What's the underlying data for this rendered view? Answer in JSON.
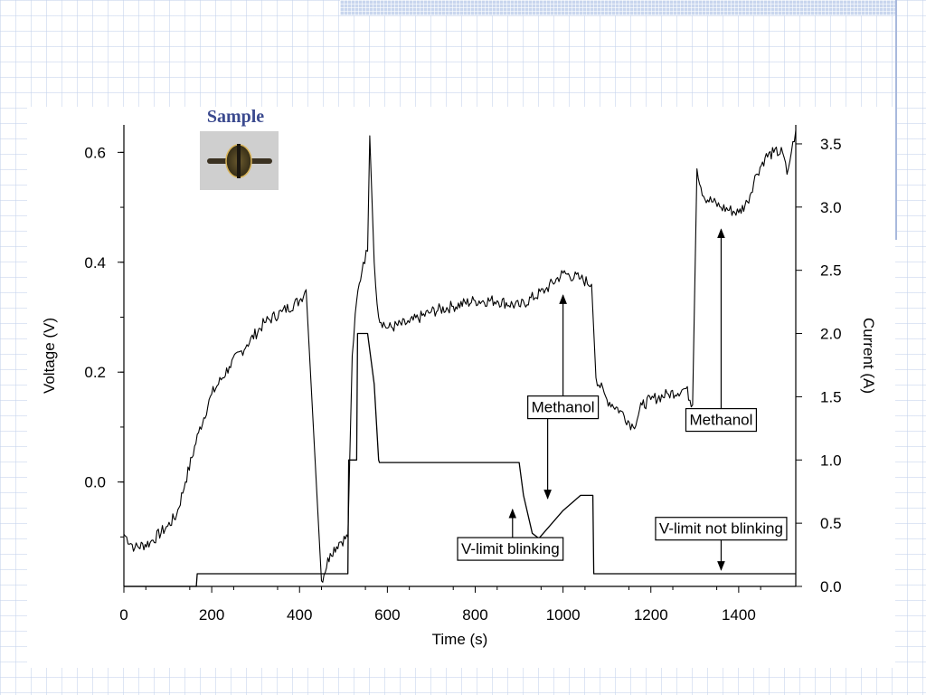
{
  "sample": {
    "label": "Sample",
    "icon": "sample-thumbnail"
  },
  "chart_data": {
    "type": "line",
    "xlabel": "Time (s)",
    "ylabel_left": "Voltage (V)",
    "ylabel_right": "Current (A)",
    "xlim": [
      0,
      1530
    ],
    "ylim_left": [
      -0.19,
      0.65
    ],
    "ylim_right": [
      0,
      3.65
    ],
    "x_ticks": [
      0,
      200,
      400,
      600,
      800,
      1000,
      1200,
      1400
    ],
    "x_tick_labels": [
      "0",
      "200",
      "400",
      "600",
      "800",
      "1000",
      "1200",
      "1400"
    ],
    "y_left_ticks": [
      0.0,
      0.2,
      0.4,
      0.6
    ],
    "y_left_tick_labels": [
      "0.0",
      "0.2",
      "0.4",
      "0.6"
    ],
    "y_right_ticks": [
      0.0,
      0.5,
      1.0,
      1.5,
      2.0,
      2.5,
      3.0,
      3.5
    ],
    "y_right_tick_labels": [
      "0.0",
      "0.5",
      "1.0",
      "1.5",
      "2.0",
      "2.5",
      "3.0",
      "3.5"
    ],
    "grid": false,
    "series": [
      {
        "axis": "left",
        "x": [
          0,
          25,
          60,
          100,
          120,
          140,
          170,
          200,
          240,
          280,
          320,
          360,
          400,
          415,
          450,
          470,
          490,
          510,
          520,
          530,
          545,
          555,
          560,
          570,
          580,
          600,
          650,
          700,
          750,
          800,
          850,
          900,
          960,
          1000,
          1040,
          1065,
          1075,
          1100,
          1130,
          1160,
          1180,
          1200,
          1240,
          1280,
          1295,
          1305,
          1320,
          1360,
          1400,
          1420,
          1440,
          1460,
          1480,
          1500,
          1510,
          1520,
          1530
        ],
        "y": [
          -0.095,
          -0.12,
          -0.11,
          -0.08,
          -0.06,
          0.0,
          0.09,
          0.16,
          0.21,
          0.25,
          0.29,
          0.31,
          0.33,
          0.35,
          -0.18,
          -0.13,
          -0.11,
          -0.1,
          0.23,
          0.33,
          0.4,
          0.42,
          0.63,
          0.4,
          0.3,
          0.28,
          0.29,
          0.31,
          0.32,
          0.33,
          0.33,
          0.32,
          0.35,
          0.38,
          0.37,
          0.36,
          0.19,
          0.15,
          0.13,
          0.1,
          0.14,
          0.15,
          0.16,
          0.17,
          0.14,
          0.57,
          0.52,
          0.5,
          0.49,
          0.51,
          0.56,
          0.59,
          0.6,
          0.6,
          0.56,
          0.6,
          0.64
        ]
      },
      {
        "axis": "right",
        "x": [
          0,
          165,
          167,
          510,
          512,
          530,
          532,
          555,
          570,
          580,
          582,
          900,
          910,
          930,
          945,
          970,
          1000,
          1040,
          1060,
          1068,
          1070,
          1530
        ],
        "y": [
          0.0,
          0.0,
          0.1,
          0.1,
          1.0,
          1.0,
          2.0,
          2.0,
          1.6,
          1.0,
          0.98,
          0.98,
          0.72,
          0.42,
          0.38,
          0.48,
          0.6,
          0.72,
          0.72,
          0.72,
          0.1,
          0.1
        ]
      }
    ],
    "annotations": [
      {
        "text": "Methanol",
        "label_at": [
          1000,
          1.42
        ],
        "label_axis": "right",
        "arrows_to": [
          [
            1000,
            0.34
          ],
          [
            965,
            -0.03
          ]
        ]
      },
      {
        "text": "Methanol",
        "label_at": [
          1360,
          1.32
        ],
        "label_axis": "right",
        "arrows_to": [
          [
            1360,
            0.46
          ]
        ]
      },
      {
        "text": "V-limit blinking",
        "label_at": [
          880,
          0.3
        ],
        "label_axis": "right",
        "arrows_to": [
          [
            885,
            -0.05
          ]
        ]
      },
      {
        "text": "V-limit not blinking",
        "label_at": [
          1360,
          0.46
        ],
        "label_axis": "right",
        "arrows_to": [
          [
            1360,
            -0.16
          ]
        ]
      }
    ]
  }
}
